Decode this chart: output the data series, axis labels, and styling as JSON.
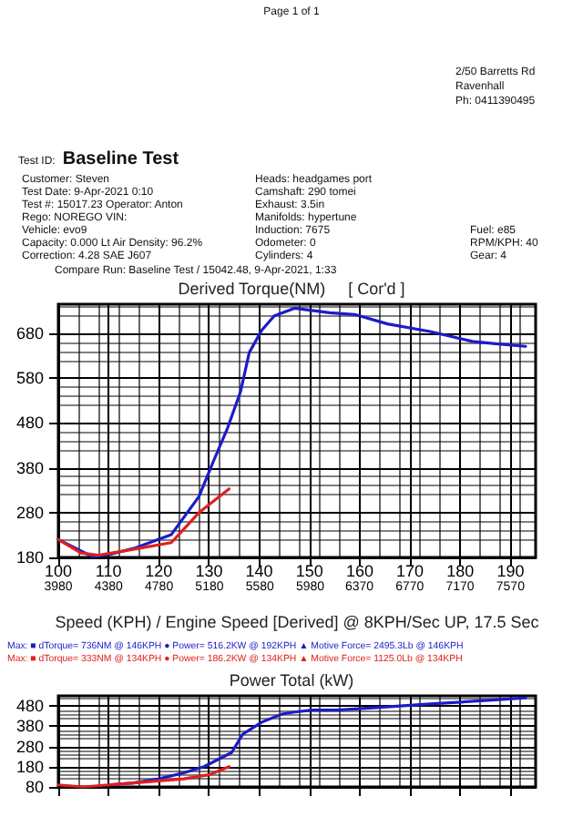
{
  "chart_data": [
    {
      "type": "other",
      "title": "Baseline Test",
      "subtitle": "Test ID:",
      "annotations": [
        "Page 1 of 1",
        "2/50 Barretts Rd",
        "Ravenhall",
        "Ph: 0411390495",
        "Customer: Steven",
        "Test Date: 9-Apr-2021 0:10",
        "Test #: 15017.23 Operator: Anton",
        "Rego: NOREGO   VIN:",
        "Vehicle: evo9",
        "Capacity: 0.000 Lt   Air Density: 96.2%",
        "Correction: 4.28 SAE J607",
        "Heads: headgames port",
        "Camshaft: 290 tomei",
        "Exhaust: 3.5in",
        "Manifolds: hypertune",
        "Induction: 7675",
        "Odometer: 0",
        "Cylinders: 4",
        "Fuel: e85",
        "RPM/KPH: 40",
        "Gear: 4",
        "Compare Run:  Baseline Test / 15042.48,  9-Apr-2021,  1:33"
      ]
    },
    {
      "type": "line",
      "title": "Derived Torque(NM)     [ Cor'd ]",
      "xlabel": "Speed (KPH) / Engine Speed [Derived] @ 8KPH/Sec UP, 17.5 Sec",
      "series": [
        {
          "color": "#1c1cc8",
          "x": [
            100,
            106.7,
            110,
            115,
            122.5,
            128,
            131,
            133.7,
            136.3,
            138,
            140.5,
            143,
            147,
            154,
            159,
            165.5,
            174,
            182.4,
            187,
            193
          ],
          "values": [
            220,
            182,
            186,
            200,
            231,
            316,
            398,
            469,
            551,
            637,
            687,
            719,
            736,
            726,
            722,
            701,
            684,
            662,
            657,
            651
          ]
        },
        {
          "color": "#e02020",
          "x": [
            100,
            104.5,
            108,
            116,
            122.5,
            128,
            134
          ],
          "values": [
            220,
            190,
            185,
            200,
            213,
            280,
            333
          ]
        }
      ],
      "xlim": [
        100,
        195
      ],
      "xticks": [
        100,
        110,
        120,
        130,
        140,
        150,
        160,
        170,
        180,
        190
      ],
      "x2lim": [
        3980,
        7770
      ],
      "x2ticks": [
        3980,
        4380,
        4780,
        5180,
        5580,
        5980,
        6370,
        6770,
        7170,
        7570
      ],
      "ylim": [
        180,
        745
      ],
      "yticks": [
        180,
        280,
        380,
        480,
        580,
        680
      ],
      "grid": true,
      "marker": "none",
      "line_style": "solid",
      "annotations": [
        "Max: ■ dTorque= 736NM @ 146KPH ● Power= 516.2KW @ 192KPH ▲ Motive Force= 2495.3Lb @ 146KPH",
        "Max: ■ dTorque= 333NM @ 134KPH ● Power= 186.2KW @ 134KPH ▲ Motive Force= 1125.0Lb @ 134KPH"
      ]
    },
    {
      "type": "line",
      "title": "Power Total (kW)",
      "series": [
        {
          "color": "#1c1cc8",
          "x": [
            110,
            115,
            120,
            125,
            129,
            134.5,
            136.7,
            140.5,
            144.5,
            147,
            150.6,
            155.5,
            162,
            174,
            187,
            193
          ],
          "values": [
            90,
            100,
            120,
            150,
            180,
            250,
            340,
            400,
            440,
            450,
            460,
            460,
            470,
            490,
            510,
            520
          ]
        },
        {
          "color": "#e02020",
          "x": [
            100,
            105,
            110,
            115,
            120,
            125,
            130,
            134
          ],
          "values": [
            90,
            80,
            90,
            100,
            110,
            120,
            140,
            180
          ]
        }
      ],
      "xlim": [
        100,
        195
      ],
      "xticks": [
        100,
        110,
        120,
        130,
        140,
        150,
        160,
        170,
        180,
        190
      ],
      "ylim": [
        80,
        530
      ],
      "yticks": [
        80,
        180,
        280,
        380,
        480
      ],
      "grid": true,
      "marker": "none",
      "line_style": "solid",
      "tick_labels": "y"
    }
  ]
}
